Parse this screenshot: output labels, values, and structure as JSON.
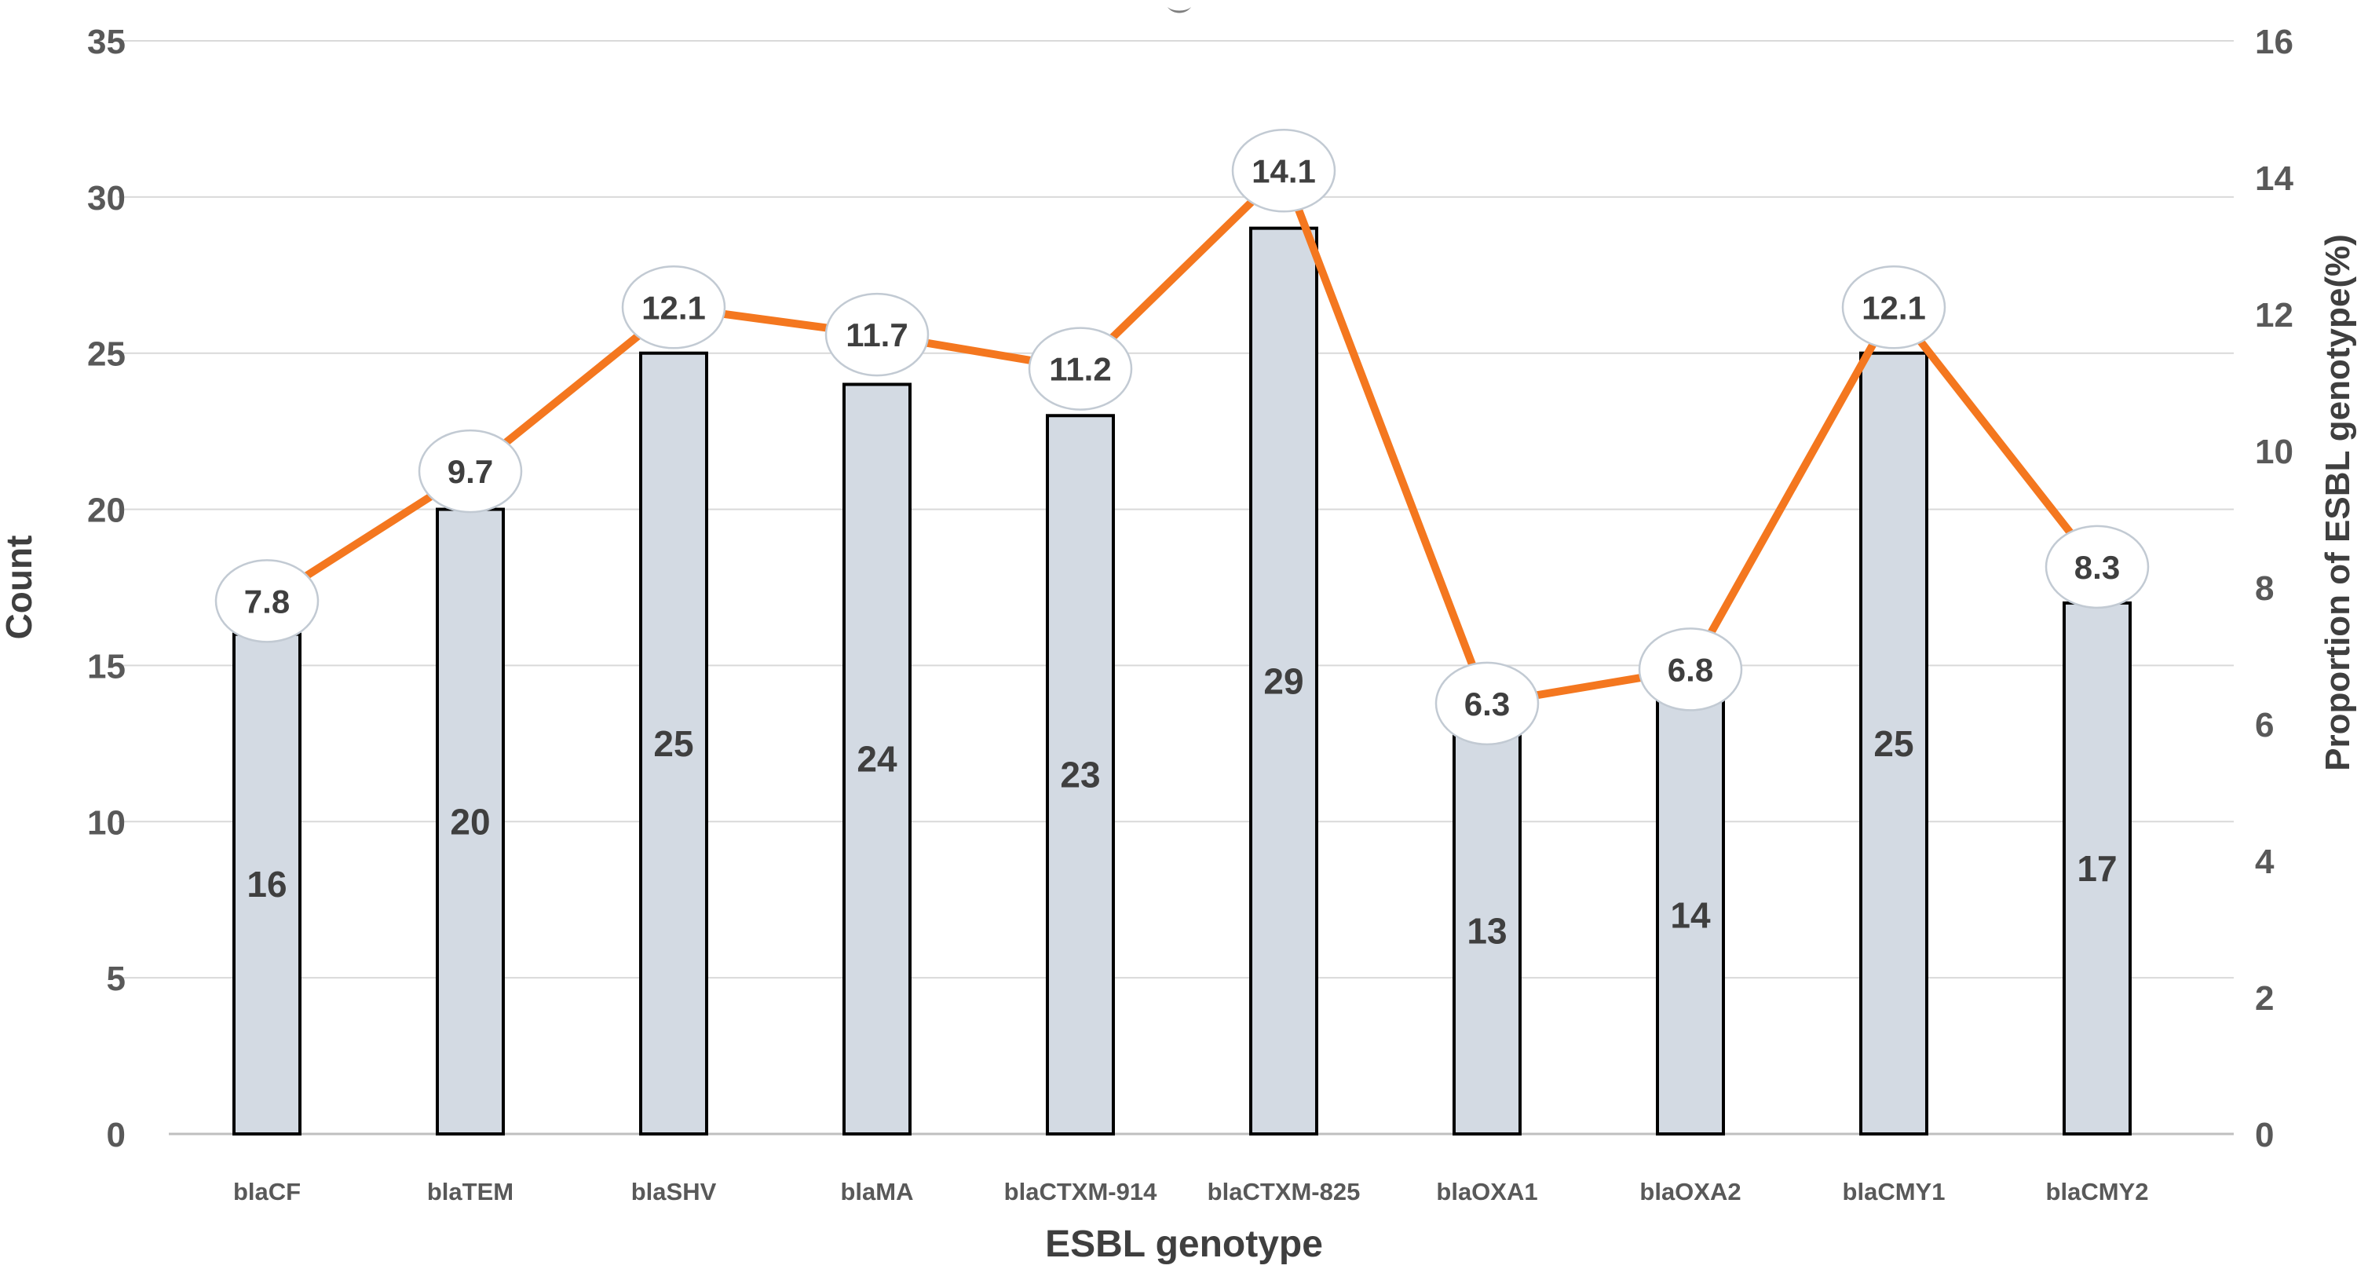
{
  "chart_data": {
    "type": "bar",
    "subtype": "combo-bar-line",
    "categories": [
      "blaCF",
      "blaTEM",
      "blaSHV",
      "blaMA",
      "blaCTXM-914",
      "blaCTXM-825",
      "blaOXA1",
      "blaOXA2",
      "blaCMY1",
      "blaCMY2"
    ],
    "xlabel": "ESBL genotype",
    "series": [
      {
        "name": "Count",
        "type": "bar",
        "axis": "left",
        "values": [
          16,
          20,
          25,
          24,
          23,
          29,
          13,
          14,
          25,
          17
        ]
      },
      {
        "name": "Proportion of ESBL genotype(%)",
        "type": "line",
        "axis": "right",
        "values": [
          7.8,
          9.7,
          12.1,
          11.7,
          11.2,
          14.1,
          6.3,
          6.8,
          12.1,
          8.3
        ]
      }
    ],
    "left_axis": {
      "title": "Count",
      "min": 0,
      "max": 35,
      "step": 5,
      "ticks": [
        "0",
        "5",
        "10",
        "15",
        "20",
        "25",
        "30",
        "35"
      ]
    },
    "right_axis": {
      "title": "Proportion of ESBL genotype(%)",
      "min": 0,
      "max": 16,
      "step": 2,
      "ticks": [
        "0",
        "2",
        "4",
        "6",
        "8",
        "10",
        "12",
        "14",
        "16"
      ]
    },
    "grid": true,
    "legend": false,
    "data_labels": {
      "bar_labels_inside": true,
      "line_labels_in_ellipses": true
    },
    "colors": {
      "bar_fill": "#D3DAE3",
      "bar_border": "#000000",
      "line": "#F4771F",
      "marker_fill": "#FFFFFF",
      "marker_border": "#C2CAD3",
      "grid": "#D9D9D9",
      "axis_line": "#BFBFBF",
      "tick_text": "#595959",
      "label_text": "#3F3F3F",
      "artifact": "#7F7F7F"
    }
  }
}
